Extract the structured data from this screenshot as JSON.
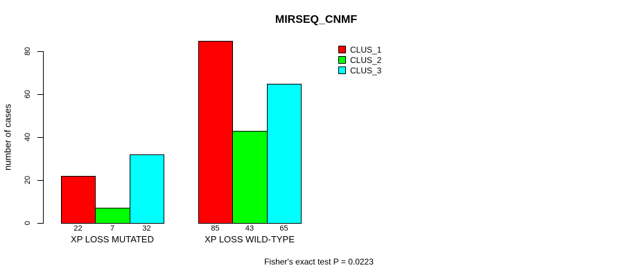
{
  "chart_data": {
    "type": "bar",
    "title": "MIRSEQ_CNMF",
    "xlabel": "",
    "ylabel": "number of cases",
    "categories": [
      "XP LOSS MUTATED",
      "XP LOSS WILD-TYPE"
    ],
    "series": [
      {
        "name": "CLUS_1",
        "color": "#ff0000",
        "values": [
          22,
          85
        ]
      },
      {
        "name": "CLUS_2",
        "color": "#00ff00",
        "values": [
          7,
          43
        ]
      },
      {
        "name": "CLUS_3",
        "color": "#00ffff",
        "values": [
          32,
          65
        ]
      }
    ],
    "yticks": [
      0,
      20,
      40,
      60,
      80
    ],
    "ylim": [
      0,
      85
    ],
    "grid": false,
    "legend_position": "top-right-inside",
    "bar_value_labels_shown": true,
    "note": "Fisher's exact test P = 0.0223"
  }
}
